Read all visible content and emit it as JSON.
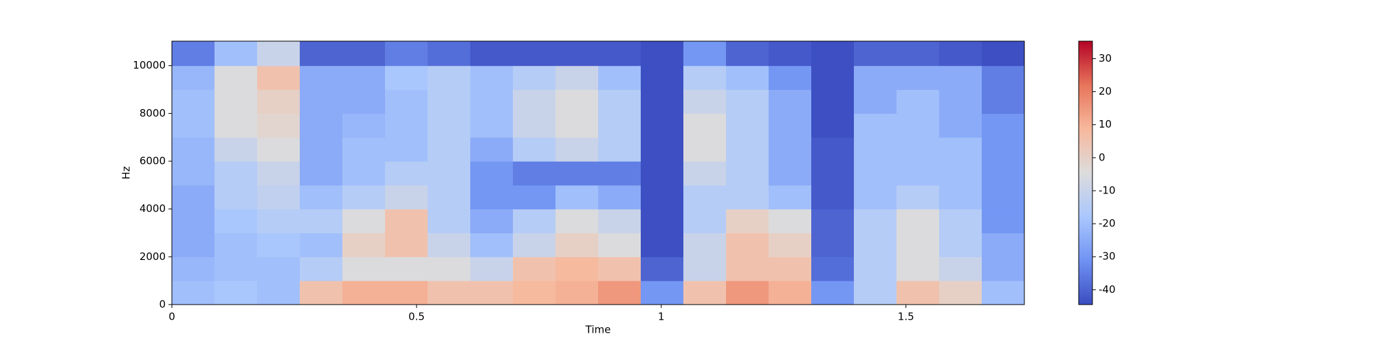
{
  "chart_data": {
    "type": "spectrogram",
    "x_label": "Time",
    "y_label": "Hz",
    "x_edges": [
      0,
      0.0871,
      0.1742,
      0.2613,
      0.3484,
      0.4355,
      0.5226,
      0.6097,
      0.6968,
      0.7839,
      0.871,
      0.9581,
      1.0452,
      1.1323,
      1.2194,
      1.3065,
      1.3936,
      1.4807,
      1.5678,
      1.6549,
      1.742
    ],
    "y_edges": [
      0,
      1000,
      2000,
      3000,
      4000,
      5000,
      6000,
      7000,
      8000,
      9000,
      10000,
      11025
    ],
    "values": [
      [
        -20,
        -22,
        -25,
        -25,
        -25,
        -22,
        -22,
        -20,
        -20,
        -22,
        -35
      ],
      [
        -18,
        -20,
        -20,
        -18,
        -15,
        -15,
        -10,
        -5,
        -5,
        -5,
        -20
      ],
      [
        -20,
        -20,
        -18,
        -15,
        -12,
        -10,
        -5,
        -2,
        0,
        5,
        -10
      ],
      [
        5,
        -15,
        -20,
        -15,
        -20,
        -25,
        -25,
        -25,
        -25,
        -25,
        -40
      ],
      [
        10,
        -5,
        0,
        -5,
        -15,
        -20,
        -20,
        -22,
        -25,
        -25,
        -40
      ],
      [
        10,
        -5,
        5,
        5,
        -10,
        -15,
        -20,
        -20,
        -20,
        -18,
        -35
      ],
      [
        5,
        -5,
        -10,
        -15,
        -15,
        -15,
        -15,
        -15,
        -15,
        -15,
        -38
      ],
      [
        5,
        -10,
        -20,
        -25,
        -30,
        -30,
        -25,
        -20,
        -20,
        -20,
        -42
      ],
      [
        8,
        5,
        -10,
        -15,
        -30,
        -35,
        -15,
        -10,
        -10,
        -15,
        -42
      ],
      [
        10,
        8,
        0,
        -5,
        -20,
        -35,
        -10,
        -5,
        -5,
        -10,
        -42
      ],
      [
        15,
        5,
        -5,
        -10,
        -25,
        -35,
        -15,
        -15,
        -15,
        -20,
        -42
      ],
      [
        -30,
        -40,
        -44,
        -44,
        -44,
        -44,
        -44,
        -44,
        -44,
        -44,
        -44
      ],
      [
        5,
        -10,
        -10,
        -15,
        -15,
        -10,
        -5,
        -5,
        -10,
        -15,
        -30
      ],
      [
        15,
        5,
        5,
        0,
        -15,
        -15,
        -15,
        -15,
        -15,
        -20,
        -40
      ],
      [
        10,
        5,
        0,
        -5,
        -20,
        -25,
        -25,
        -25,
        -25,
        -30,
        -42
      ],
      [
        -30,
        -38,
        -40,
        -40,
        -42,
        -42,
        -42,
        -44,
        -44,
        -44,
        -44
      ],
      [
        -15,
        -15,
        -15,
        -15,
        -20,
        -20,
        -20,
        -20,
        -25,
        -25,
        -40
      ],
      [
        5,
        -5,
        -5,
        -5,
        -15,
        -20,
        -20,
        -20,
        -20,
        -25,
        -40
      ],
      [
        0,
        -10,
        -15,
        -15,
        -20,
        -20,
        -20,
        -25,
        -25,
        -25,
        -42
      ],
      [
        -20,
        -25,
        -25,
        -30,
        -30,
        -30,
        -30,
        -30,
        -35,
        -35,
        -44
      ]
    ],
    "xlim": [
      0,
      1.742
    ],
    "xticks": [
      0,
      0.5,
      1,
      1.5
    ],
    "ylim": [
      0,
      11025
    ],
    "yticks": [
      0,
      2000,
      4000,
      6000,
      8000,
      10000
    ],
    "clim": [
      -44.5,
      35.3
    ],
    "cticks": [
      -40,
      -30,
      -20,
      -10,
      0,
      10,
      20,
      30
    ],
    "colormap": [
      "#3b4cc0",
      "#6f92f3",
      "#aac7fd",
      "#dddcdc",
      "#f7b89c",
      "#e7745b",
      "#b40426"
    ]
  }
}
